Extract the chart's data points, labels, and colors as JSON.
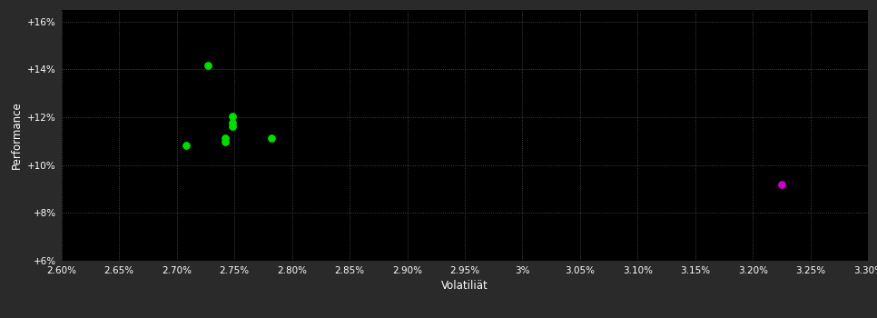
{
  "background_color": "#2a2a2a",
  "plot_bg_color": "#000000",
  "grid_color": "#555555",
  "text_color": "#ffffff",
  "xlabel": "Volatiliät",
  "ylabel": "Performance",
  "xlim": [
    0.026,
    0.033
  ],
  "ylim": [
    0.06,
    0.165
  ],
  "xticks": [
    0.026,
    0.0265,
    0.027,
    0.0275,
    0.028,
    0.0285,
    0.029,
    0.0295,
    0.03,
    0.0305,
    0.031,
    0.0315,
    0.032,
    0.0325,
    0.033
  ],
  "yticks": [
    0.06,
    0.08,
    0.1,
    0.12,
    0.14,
    0.16
  ],
  "green_points": [
    [
      0.02727,
      0.1415
    ],
    [
      0.02748,
      0.1205
    ],
    [
      0.02748,
      0.1178
    ],
    [
      0.02748,
      0.1162
    ],
    [
      0.02742,
      0.1112
    ],
    [
      0.02742,
      0.1098
    ],
    [
      0.02708,
      0.1082
    ],
    [
      0.02782,
      0.1112
    ]
  ],
  "magenta_points": [
    [
      0.03225,
      0.092
    ]
  ],
  "point_size": 28,
  "green_color": "#00dd00",
  "magenta_color": "#cc00cc"
}
